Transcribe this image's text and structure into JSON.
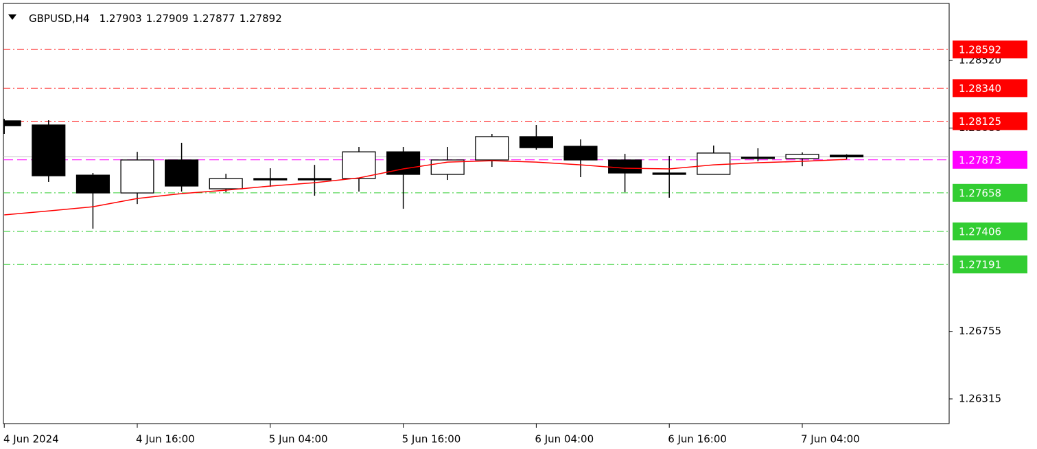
{
  "chart_data": {
    "type": "candlestick",
    "header": {
      "symbol": "GBPUSD,H4",
      "ohlc": [
        1.27903,
        1.27909,
        1.27877,
        1.27892
      ]
    },
    "categories": [
      "4 Jun 2024",
      null,
      null,
      "4 Jun 16:00",
      null,
      null,
      "5 Jun 04:00",
      null,
      null,
      "5 Jun 16:00",
      null,
      null,
      "6 Jun 04:00",
      null,
      null,
      "6 Jun 16:00",
      null,
      null,
      "7 Jun 04:00",
      null
    ],
    "open": [
      1.28127,
      1.281,
      1.27773,
      1.27657,
      1.27872,
      1.27684,
      1.27751,
      1.27751,
      1.27751,
      1.27925,
      1.27778,
      1.27872,
      1.28024,
      1.27961,
      1.27872,
      1.27787,
      1.27778,
      1.2789,
      1.27881,
      1.27903
    ],
    "high": [
      1.2814,
      1.28131,
      1.27787,
      1.27925,
      1.27984,
      1.27782,
      1.27818,
      1.2784,
      1.27957,
      1.27957,
      1.27957,
      1.28042,
      1.281,
      1.28006,
      1.27912,
      1.27899,
      1.27966,
      1.27948,
      1.27921,
      1.27909
    ],
    "low": [
      1.28042,
      1.27729,
      1.27424,
      1.27585,
      1.27666,
      1.27662,
      1.27697,
      1.27639,
      1.27666,
      1.27554,
      1.27742,
      1.27827,
      1.27939,
      1.2776,
      1.27662,
      1.27626,
      1.27778,
      1.27863,
      1.27831,
      1.27877
    ],
    "close": [
      1.28095,
      1.27769,
      1.27657,
      1.27872,
      1.27702,
      1.27751,
      1.27742,
      1.27742,
      1.27925,
      1.27778,
      1.27872,
      1.28024,
      1.27952,
      1.27872,
      1.27787,
      1.27778,
      1.27917,
      1.27881,
      1.27908,
      1.27892
    ],
    "bull_color": "#ffffff",
    "bear_color": "#000000",
    "moving_average": {
      "color": "#ff0000",
      "values": [
        1.27514,
        1.2754,
        1.27567,
        1.27621,
        1.27653,
        1.27675,
        1.27702,
        1.27724,
        1.27755,
        1.27814,
        1.27858,
        1.27867,
        1.27858,
        1.2784,
        1.27818,
        1.27814,
        1.2784,
        1.27854,
        1.27863,
        1.27876
      ]
    },
    "levels": [
      {
        "value": 1.28592,
        "color": "#ff0000",
        "style": "dashdot"
      },
      {
        "value": 1.2834,
        "label": "1.28340",
        "color": "#ff0000",
        "style": "dashdot"
      },
      {
        "value": 1.28125,
        "color": "#ff0000",
        "style": "dashdot"
      },
      {
        "value": 1.27873,
        "color": "#ff00ff",
        "style": "dash"
      },
      {
        "value": 1.27658,
        "color": "#32cd32",
        "style": "dashdot"
      },
      {
        "value": 1.27406,
        "color": "#32cd32",
        "style": "dashdot"
      },
      {
        "value": 1.27191,
        "color": "#32cd32",
        "style": "dashdot"
      }
    ],
    "ylim": [
      1.26154,
      1.28892
    ],
    "yticks": [
      {
        "value": 1.2852,
        "label": "1.28520"
      },
      {
        "value": 1.2808,
        "label": "1.28080"
      },
      1.26755,
      1.26315
    ]
  }
}
